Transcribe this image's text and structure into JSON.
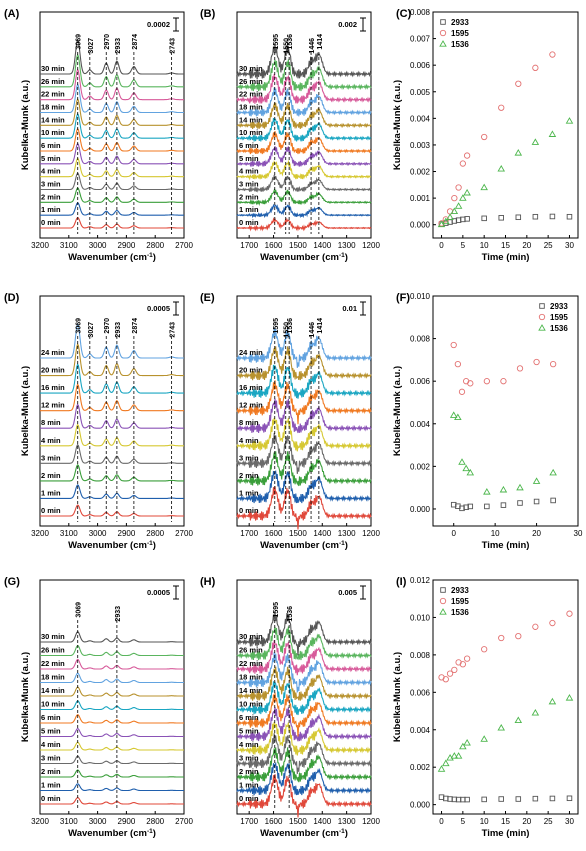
{
  "figure": {
    "palette": [
      "#e0483a",
      "#1f5fad",
      "#3a9e3a",
      "#6a6a6a",
      "#d6c832",
      "#8a52b6",
      "#f07a22",
      "#1aa6c2",
      "#b8922e",
      "#62a3e0",
      "#d75a9a",
      "#5ab55e",
      "#555555",
      "#8fbf3b"
    ],
    "scatter_colors": {
      "2933": "#555555",
      "1595": "#e37272",
      "1536": "#4cb64c"
    },
    "font_unit": "cm",
    "font_unit_sup": "-1"
  },
  "chart_data": [
    {
      "panel": "(A)",
      "type": "line",
      "xlabel": "Wavenumber (cm-1)",
      "ylabel": "Kubelka-Munk (a.u.)",
      "xlim": [
        3200,
        2700
      ],
      "x_ticks": [
        "3200",
        "3100",
        "3000",
        "2900",
        "2800",
        "2700"
      ],
      "scale_bar": "0.0002",
      "peaks": [
        "3069",
        "3027",
        "2970",
        "2933",
        "2874",
        "2743"
      ],
      "series": [
        {
          "name": "0 min"
        },
        {
          "name": "1 min"
        },
        {
          "name": "2 min"
        },
        {
          "name": "3 min"
        },
        {
          "name": "4 min"
        },
        {
          "name": "5 min"
        },
        {
          "name": "6 min"
        },
        {
          "name": "10 min"
        },
        {
          "name": "14 min"
        },
        {
          "name": "18 min"
        },
        {
          "name": "22 min"
        },
        {
          "name": "26 min"
        },
        {
          "name": "30 min"
        }
      ]
    },
    {
      "panel": "(B)",
      "type": "line",
      "xlabel": "Wavenumber (cm-1)",
      "ylabel": "",
      "xlim": [
        1750,
        1200
      ],
      "x_ticks": [
        "1700",
        "1600",
        "1500",
        "1400",
        "1300",
        "1200"
      ],
      "scale_bar": "0.002",
      "peaks": [
        "1595",
        "1550",
        "1536",
        "1446",
        "1414"
      ],
      "series": [
        {
          "name": "0 min"
        },
        {
          "name": "1 min"
        },
        {
          "name": "2 min"
        },
        {
          "name": "3 min"
        },
        {
          "name": "4 min"
        },
        {
          "name": "5 min"
        },
        {
          "name": "6 min"
        },
        {
          "name": "10 min"
        },
        {
          "name": "14 min"
        },
        {
          "name": "18 min"
        },
        {
          "name": "22 min"
        },
        {
          "name": "26 min"
        },
        {
          "name": "30 min"
        }
      ]
    },
    {
      "panel": "(C)",
      "type": "scatter",
      "xlabel": "Time (min)",
      "ylabel": "Kubelka-Munk (a.u.)",
      "xlim": [
        -2,
        32
      ],
      "ylim": [
        -0.0005,
        0.008
      ],
      "x_ticks": [
        "0",
        "5",
        "10",
        "15",
        "20",
        "25",
        "30"
      ],
      "y_ticks": [
        "0.000",
        "0.001",
        "0.002",
        "0.003",
        "0.004",
        "0.005",
        "0.006",
        "0.007",
        "0.008"
      ],
      "legend": "top-left",
      "series": [
        {
          "name": "2933",
          "marker": "square",
          "x": [
            0,
            1,
            2,
            3,
            4,
            5,
            6,
            10,
            14,
            18,
            22,
            26,
            30
          ],
          "y": [
            2e-05,
            6e-05,
            0.0001,
            0.00014,
            0.00017,
            0.0002,
            0.00022,
            0.00024,
            0.00026,
            0.00028,
            0.0003,
            0.00031,
            0.0003
          ]
        },
        {
          "name": "1595",
          "marker": "circle",
          "x": [
            0,
            1,
            2,
            3,
            4,
            5,
            6,
            10,
            14,
            18,
            22,
            26,
            30
          ],
          "y": [
            5e-05,
            0.0002,
            0.0005,
            0.001,
            0.0014,
            0.0023,
            0.0026,
            0.0033,
            0.0044,
            0.0053,
            0.0059,
            0.0064,
            null
          ]
        },
        {
          "name": "1536",
          "marker": "triangle",
          "x": [
            0,
            1,
            2,
            3,
            4,
            5,
            6,
            10,
            14,
            18,
            22,
            26,
            30
          ],
          "y": [
            1e-05,
            0.00012,
            0.00028,
            0.0005,
            0.0007,
            0.001,
            0.0012,
            0.0014,
            0.0021,
            0.0027,
            0.0031,
            0.0034,
            0.0039
          ]
        }
      ]
    },
    {
      "panel": "(D)",
      "type": "line",
      "xlabel": "Wavenumber (cm-1)",
      "ylabel": "Kubelka-Munk (a.u.)",
      "xlim": [
        3200,
        2700
      ],
      "x_ticks": [
        "3200",
        "3100",
        "3000",
        "2900",
        "2800",
        "2700"
      ],
      "scale_bar": "0.0005",
      "peaks": [
        "3069",
        "3027",
        "2970",
        "2933",
        "2874",
        "2743"
      ],
      "series": [
        {
          "name": "0 min"
        },
        {
          "name": "1 min"
        },
        {
          "name": "2 min"
        },
        {
          "name": "3 min"
        },
        {
          "name": "4 min"
        },
        {
          "name": "8 min"
        },
        {
          "name": "12 min"
        },
        {
          "name": "16 min"
        },
        {
          "name": "20 min"
        },
        {
          "name": "24 min"
        }
      ]
    },
    {
      "panel": "(E)",
      "type": "line",
      "xlabel": "Wavenumber (cm-1)",
      "ylabel": "",
      "xlim": [
        1750,
        1200
      ],
      "x_ticks": [
        "1700",
        "1600",
        "1500",
        "1400",
        "1300",
        "1200"
      ],
      "scale_bar": "0.01",
      "peaks": [
        "1595",
        "1550",
        "1536",
        "1446",
        "1414"
      ],
      "series": [
        {
          "name": "0 min"
        },
        {
          "name": "1 min"
        },
        {
          "name": "2 min"
        },
        {
          "name": "3 min"
        },
        {
          "name": "4 min"
        },
        {
          "name": "8 min"
        },
        {
          "name": "12 min"
        },
        {
          "name": "16 min"
        },
        {
          "name": "20 min"
        },
        {
          "name": "24 min"
        }
      ]
    },
    {
      "panel": "(F)",
      "type": "scatter",
      "xlabel": "Time (min)",
      "ylabel": "Kubelka-Munk (a.u.)",
      "xlim": [
        -5,
        30
      ],
      "ylim": [
        -0.0008,
        0.01
      ],
      "x_ticks": [
        "0",
        "10",
        "20",
        "30"
      ],
      "y_ticks": [
        "0.000",
        "0.002",
        "0.004",
        "0.006",
        "0.008",
        "0.010"
      ],
      "legend": "top-right",
      "series": [
        {
          "name": "2933",
          "marker": "square",
          "x": [
            0,
            1,
            2,
            3,
            4,
            8,
            12,
            16,
            20,
            24
          ],
          "y": [
            0.0002,
            0.00013,
            3e-05,
            8e-05,
            0.00012,
            0.00012,
            0.00018,
            0.00028,
            0.00035,
            0.0004
          ]
        },
        {
          "name": "1595",
          "marker": "circle",
          "x": [
            0,
            1,
            2,
            3,
            4,
            8,
            12,
            16,
            20,
            24
          ],
          "y": [
            0.0077,
            0.0068,
            0.0055,
            0.006,
            0.0059,
            0.006,
            0.006,
            0.0066,
            0.0069,
            0.0068
          ]
        },
        {
          "name": "1536",
          "marker": "triangle",
          "x": [
            0,
            1,
            2,
            3,
            4,
            8,
            12,
            16,
            20,
            24
          ],
          "y": [
            0.0044,
            0.0043,
            0.0022,
            0.0019,
            0.0017,
            0.0008,
            0.0009,
            0.001,
            0.0013,
            0.0017
          ]
        }
      ]
    },
    {
      "panel": "(G)",
      "type": "line",
      "xlabel": "Wavenumber (cm-1)",
      "ylabel": "Kubelka-Munk (a.u.)",
      "xlim": [
        3200,
        2700
      ],
      "x_ticks": [
        "3200",
        "3100",
        "3000",
        "2900",
        "2800",
        "2700"
      ],
      "scale_bar": "0.0005",
      "peaks": [
        "3069",
        "2933"
      ],
      "series": [
        {
          "name": "0 min"
        },
        {
          "name": "1 min"
        },
        {
          "name": "2 min"
        },
        {
          "name": "3 min"
        },
        {
          "name": "4 min"
        },
        {
          "name": "5 min"
        },
        {
          "name": "6 min"
        },
        {
          "name": "10 min"
        },
        {
          "name": "14 min"
        },
        {
          "name": "18 min"
        },
        {
          "name": "22 min"
        },
        {
          "name": "26 min"
        },
        {
          "name": "30 min"
        }
      ]
    },
    {
      "panel": "(H)",
      "type": "line",
      "xlabel": "Wavenumber (cm-1)",
      "ylabel": "",
      "xlim": [
        1750,
        1200
      ],
      "x_ticks": [
        "1700",
        "1600",
        "1500",
        "1400",
        "1300",
        "1200"
      ],
      "scale_bar": "0.005",
      "peaks": [
        "1595",
        "1536"
      ],
      "series": [
        {
          "name": "0 min"
        },
        {
          "name": "1 min"
        },
        {
          "name": "2 min"
        },
        {
          "name": "3 min"
        },
        {
          "name": "4 min"
        },
        {
          "name": "5 min"
        },
        {
          "name": "6 min"
        },
        {
          "name": "10 min"
        },
        {
          "name": "14 min"
        },
        {
          "name": "18 min"
        },
        {
          "name": "22 min"
        },
        {
          "name": "26 min"
        },
        {
          "name": "30 min"
        }
      ]
    },
    {
      "panel": "(I)",
      "type": "scatter",
      "xlabel": "Time (min)",
      "ylabel": "Kubelka-Munk (a.u.)",
      "xlim": [
        -2,
        32
      ],
      "ylim": [
        -0.0005,
        0.012
      ],
      "x_ticks": [
        "0",
        "5",
        "10",
        "15",
        "20",
        "25",
        "30"
      ],
      "y_ticks": [
        "0.000",
        "0.002",
        "0.004",
        "0.006",
        "0.008",
        "0.010",
        "0.012"
      ],
      "legend": "top-left",
      "series": [
        {
          "name": "2933",
          "marker": "square",
          "x": [
            0,
            1,
            2,
            3,
            4,
            5,
            6,
            10,
            14,
            18,
            22,
            26,
            30
          ],
          "y": [
            0.0004,
            0.00033,
            0.0003,
            0.00028,
            0.00027,
            0.00027,
            0.00027,
            0.00028,
            0.0003,
            0.0003,
            0.00032,
            0.00033,
            0.00034
          ]
        },
        {
          "name": "1595",
          "marker": "circle",
          "x": [
            0,
            1,
            2,
            3,
            4,
            5,
            6,
            10,
            14,
            18,
            22,
            26,
            30
          ],
          "y": [
            0.0068,
            0.0067,
            0.007,
            0.0072,
            0.0076,
            0.0075,
            0.0078,
            0.0083,
            0.0089,
            0.009,
            0.0095,
            0.0097,
            0.0102
          ]
        },
        {
          "name": "1536",
          "marker": "triangle",
          "x": [
            0,
            1,
            2,
            3,
            4,
            5,
            6,
            10,
            14,
            18,
            22,
            26,
            30
          ],
          "y": [
            0.0019,
            0.0022,
            0.0025,
            0.0026,
            0.0026,
            0.0031,
            0.0033,
            0.0035,
            0.0041,
            0.0045,
            0.0049,
            0.0055,
            0.0057
          ]
        }
      ]
    }
  ]
}
